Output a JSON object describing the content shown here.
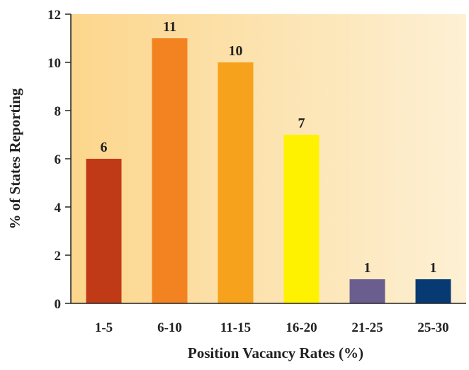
{
  "chart_data": {
    "type": "bar",
    "categories": [
      "1-5",
      "6-10",
      "11-15",
      "16-20",
      "21-25",
      "25-30"
    ],
    "values": [
      6,
      11,
      10,
      7,
      1,
      1
    ],
    "data_labels": [
      "6",
      "11",
      "10",
      "7",
      "1",
      "1"
    ],
    "bar_colors": [
      "#C13A17",
      "#F38321",
      "#F6A21D",
      "#FFF200",
      "#6A5E8F",
      "#073A73"
    ],
    "xlabel": "Position Vacancy Rates (%)",
    "ylabel": "% of States Reporting",
    "ylim": [
      0,
      12
    ],
    "yticks": [
      0,
      2,
      4,
      6,
      8,
      10,
      12
    ],
    "grid": false,
    "background_gradient": [
      "#FCD68C",
      "#FDF0D4"
    ]
  }
}
